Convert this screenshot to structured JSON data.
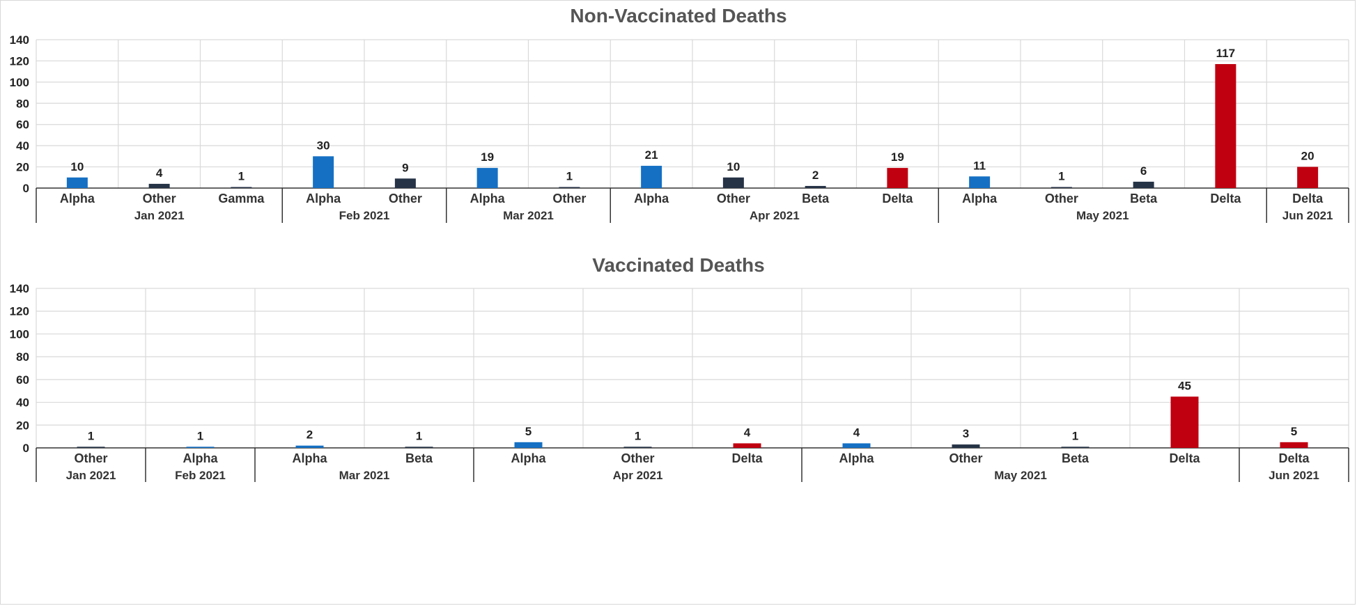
{
  "colors": {
    "Alpha": "#1570c4",
    "Other": "#263346",
    "Gamma": "#263346",
    "Beta": "#263346",
    "Delta": "#c00010"
  },
  "chart_data": [
    {
      "type": "bar",
      "title": "Non-Vaccinated Deaths",
      "ylim": [
        0,
        140
      ],
      "yticks": [
        0,
        20,
        40,
        60,
        80,
        100,
        120,
        140
      ],
      "grid": true,
      "categories": [
        "Alpha",
        "Other",
        "Gamma",
        "Alpha",
        "Other",
        "Alpha",
        "Other",
        "Alpha",
        "Other",
        "Beta",
        "Delta",
        "Alpha",
        "Other",
        "Beta",
        "Delta",
        "Delta"
      ],
      "values": [
        10,
        4,
        1,
        30,
        9,
        19,
        1,
        21,
        10,
        2,
        19,
        11,
        1,
        6,
        117,
        20
      ],
      "groups": [
        {
          "label": "Jan 2021",
          "count": 3
        },
        {
          "label": "Feb 2021",
          "count": 2
        },
        {
          "label": "Mar 2021",
          "count": 2
        },
        {
          "label": "Apr 2021",
          "count": 4
        },
        {
          "label": "May 2021",
          "count": 4
        },
        {
          "label": "Jun 2021",
          "count": 1
        }
      ]
    },
    {
      "type": "bar",
      "title": "Vaccinated Deaths",
      "ylim": [
        0,
        140
      ],
      "yticks": [
        0,
        20,
        40,
        60,
        80,
        100,
        120,
        140
      ],
      "grid": true,
      "categories": [
        "Other",
        "Alpha",
        "Alpha",
        "Beta",
        "Alpha",
        "Other",
        "Delta",
        "Alpha",
        "Other",
        "Beta",
        "Delta",
        "Delta"
      ],
      "values": [
        1,
        1,
        2,
        1,
        5,
        1,
        4,
        4,
        3,
        1,
        45,
        5
      ],
      "groups": [
        {
          "label": "Jan 2021",
          "count": 1
        },
        {
          "label": "Feb 2021",
          "count": 1
        },
        {
          "label": "Mar 2021",
          "count": 2
        },
        {
          "label": "Apr 2021",
          "count": 3
        },
        {
          "label": "May 2021",
          "count": 4
        },
        {
          "label": "Jun 2021",
          "count": 1
        }
      ]
    }
  ]
}
